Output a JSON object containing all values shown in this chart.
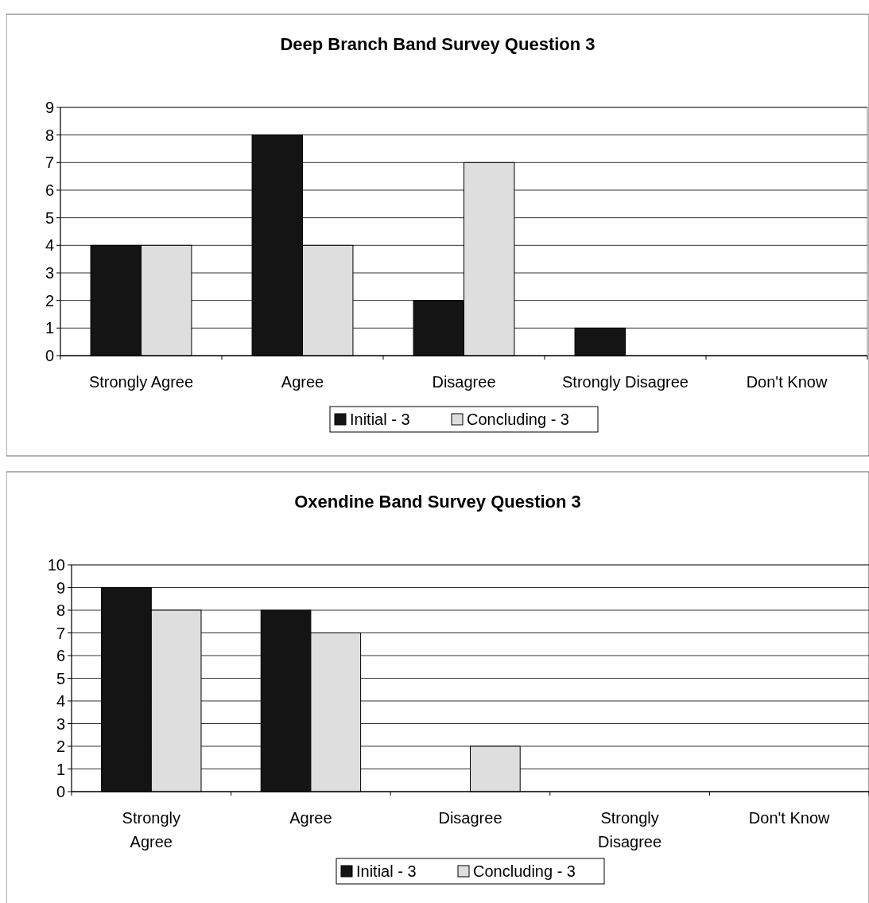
{
  "chart_data": [
    {
      "type": "bar",
      "title": "Deep Branch Band Survey Question 3",
      "categories": [
        "Strongly Agree",
        "Agree",
        "Disagree",
        "Strongly Disagree",
        "Don't Know"
      ],
      "series": [
        {
          "name": "Initial - 3",
          "color": "#141414",
          "values": [
            4,
            8,
            2,
            1,
            0
          ]
        },
        {
          "name": "Concluding - 3",
          "color": "#dedede",
          "values": [
            4,
            4,
            7,
            0,
            0
          ]
        }
      ],
      "ylim": [
        0,
        9
      ],
      "yticks": [
        0,
        1,
        2,
        3,
        4,
        5,
        6,
        7,
        8,
        9
      ],
      "grid": "y",
      "legend": "bottom"
    },
    {
      "type": "bar",
      "title": "Oxendine Band Survey Question 3",
      "categories": [
        "Strongly Agree",
        "Agree",
        "Disagree",
        "Strongly Disagree",
        "Don't Know"
      ],
      "series": [
        {
          "name": "Initial - 3",
          "color": "#141414",
          "values": [
            9,
            8,
            0,
            0,
            0
          ]
        },
        {
          "name": "Concluding - 3",
          "color": "#dedede",
          "values": [
            8,
            7,
            2,
            0,
            0
          ]
        }
      ],
      "ylim": [
        0,
        10
      ],
      "yticks": [
        0,
        1,
        2,
        3,
        4,
        5,
        6,
        7,
        8,
        9,
        10
      ],
      "grid": "y",
      "legend": "bottom"
    }
  ]
}
